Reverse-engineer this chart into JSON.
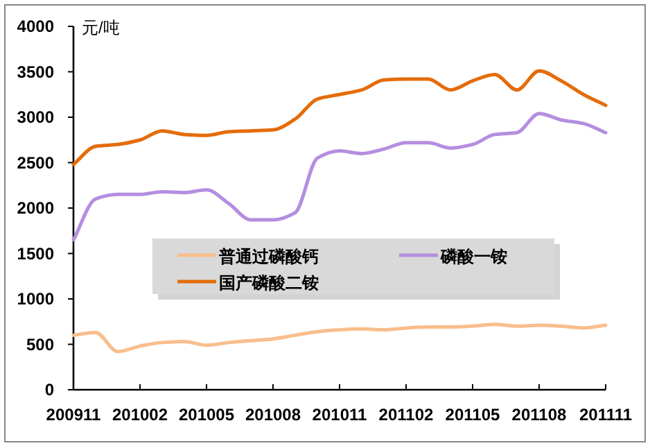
{
  "chart_data": {
    "type": "line",
    "ylabel": "元/吨",
    "categories": [
      "200911",
      null,
      null,
      "201002",
      null,
      null,
      "201005",
      null,
      null,
      "201008",
      null,
      null,
      "201011",
      null,
      null,
      "201102",
      null,
      null,
      "201105",
      null,
      null,
      "201108",
      null,
      null,
      "201111"
    ],
    "series": [
      {
        "name": "普通过磷酸钙",
        "color": "#f9be8c",
        "values": [
          600,
          630,
          420,
          480,
          520,
          530,
          490,
          520,
          540,
          560,
          600,
          640,
          660,
          670,
          660,
          680,
          690,
          690,
          700,
          720,
          700,
          710,
          700,
          680,
          710
        ]
      },
      {
        "name": "磷酸一铵",
        "color": "#b48ee0",
        "values": [
          1650,
          2100,
          2150,
          2150,
          2180,
          2170,
          2200,
          2050,
          1870,
          1870,
          1950,
          2550,
          2630,
          2600,
          2650,
          2720,
          2720,
          2660,
          2700,
          2810,
          2830,
          3040,
          2970,
          2930,
          2830
        ]
      },
      {
        "name": "国产磷酸二铵",
        "color": "#e46c0a",
        "values": [
          2480,
          2680,
          2700,
          2750,
          2850,
          2810,
          2800,
          2840,
          2850,
          2860,
          2980,
          3200,
          3250,
          3300,
          3410,
          3420,
          3420,
          3300,
          3400,
          3470,
          3300,
          3510,
          3400,
          3250,
          3130
        ]
      }
    ],
    "ylim": [
      0,
      4000
    ],
    "yticks": [
      0,
      500,
      1000,
      1500,
      2000,
      2500,
      3000,
      3500,
      4000
    ],
    "legend": "center"
  }
}
